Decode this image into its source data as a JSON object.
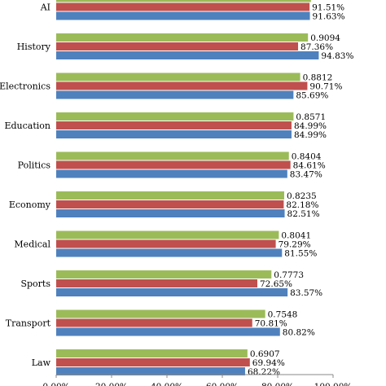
{
  "chart_data": {
    "type": "bar",
    "orientation": "horizontal",
    "categories": [
      "AI",
      "History",
      "Electronics",
      "Education",
      "Politics",
      "Economy",
      "Medical",
      "Sports",
      "Transport",
      "Law"
    ],
    "series": [
      {
        "color": "#9bbb59",
        "values": [
          0.92,
          0.9094,
          0.8812,
          0.8571,
          0.8404,
          0.8235,
          0.8041,
          0.7773,
          0.7548,
          0.6907
        ],
        "labels": [
          "",
          "0.9094",
          "0.8812",
          "0.8571",
          "0.8404",
          "0.8235",
          "0.8041",
          "0.7773",
          "0.7548",
          "0.6907"
        ]
      },
      {
        "color": "#c0504d",
        "values": [
          0.9151,
          0.8736,
          0.9071,
          0.8499,
          0.8461,
          0.8218,
          0.7929,
          0.7265,
          0.7081,
          0.6994
        ],
        "labels": [
          "91.51%",
          "87.36%",
          "90.71%",
          "84.99%",
          "84.61%",
          "82.18%",
          "79.29%",
          "72.65%",
          "70.81%",
          "69.94%"
        ]
      },
      {
        "color": "#4f81bd",
        "values": [
          0.9163,
          0.9483,
          0.8569,
          0.8499,
          0.8347,
          0.8251,
          0.8155,
          0.8357,
          0.8082,
          0.6822
        ],
        "labels": [
          "91.63%",
          "94.83%",
          "85.69%",
          "84.99%",
          "83.47%",
          "82.51%",
          "81.55%",
          "83.57%",
          "80.82%",
          "68.22%"
        ]
      }
    ],
    "xlim": [
      0,
      1
    ],
    "x_ticks": [
      0,
      0.2,
      0.4,
      0.6,
      0.8,
      1.0
    ],
    "x_tick_labels": [
      "0.00%",
      "20.00%",
      "40.00%",
      "60.00%",
      "80.00%",
      "100.00%"
    ],
    "grid": false,
    "legend": "none"
  }
}
